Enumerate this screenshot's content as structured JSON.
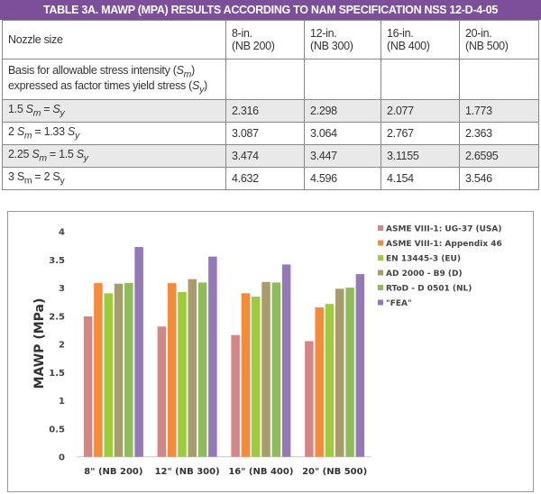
{
  "table": {
    "title": "TABLE 3A. MAWP (MPA) RESULTS ACCORDING TO NAM SPECIFICATION NSS 12-D-4-05",
    "header": {
      "label": "Nozzle size",
      "cols": [
        {
          "size": "8-in.",
          "nb": "(NB 200)"
        },
        {
          "size": "12-in.",
          "nb": "(NB 300)"
        },
        {
          "size": "16-in.",
          "nb": "(NB 400)"
        },
        {
          "size": "20-in.",
          "nb": "(NB 500)"
        }
      ]
    },
    "basis": {
      "a": "Basis for allowable stress intensity (",
      "s": "S",
      "m": "m",
      "b": ")",
      "c": "expressed as factor times yield stress (",
      "s2": "S",
      "y": "y",
      "d": ")"
    },
    "rows": [
      {
        "pre": "1.5 ",
        "s1": "S",
        "sub1": "m",
        "mid": " = ",
        "s2": "S",
        "sub2": "y",
        "values": [
          "2.316",
          "2.298",
          "2.077",
          "1.773"
        ]
      },
      {
        "pre": "2 ",
        "s1": "S",
        "sub1": "m",
        "mid": " = 1.33 ",
        "s2": "S",
        "sub2": "y",
        "values": [
          "3.087",
          "3.064",
          "2.767",
          "2.363"
        ]
      },
      {
        "pre": "2.25 ",
        "s1": "S",
        "sub1": "m",
        "mid": " = 1.5 ",
        "s2": "S",
        "sub2": "y",
        "values": [
          "3.474",
          "3.447",
          "3.1155",
          "2.6595"
        ]
      },
      {
        "pre": "3 ",
        "s1": "S",
        "sub1": "m",
        "mid": " = 2 ",
        "s2": "S",
        "sub2": "y",
        "values": [
          "4.632",
          "4.596",
          "4.154",
          "3.546"
        ]
      }
    ]
  },
  "chart_data": {
    "type": "bar",
    "ylabel": "MAWP (MPa)",
    "ylim": [
      0,
      4
    ],
    "yticks": [
      "0",
      "0.5",
      "1",
      "1.5",
      "2",
      "2.5",
      "3",
      "3.5",
      "4"
    ],
    "grid": false,
    "legend_position": "right",
    "categories": [
      "8\" (NB 200)",
      "12\" (NB 300)",
      "16\" (NB 400)",
      "20\" (NB 500)"
    ],
    "series": [
      {
        "name": "ASME VIII-1: UG-37 (USA)",
        "color": "#d48585",
        "values": [
          2.49,
          2.31,
          2.16,
          2.05
        ]
      },
      {
        "name": "ASME VIII-1: Appendix 46",
        "color": "#f58a3a",
        "values": [
          3.08,
          3.08,
          2.9,
          2.65
        ]
      },
      {
        "name": "EN 13445-3 (EU)",
        "color": "#9dcc3a",
        "values": [
          2.9,
          2.92,
          2.84,
          2.71
        ]
      },
      {
        "name": "AD 2000 - B9 (D)",
        "color": "#a89c6c",
        "values": [
          3.07,
          3.15,
          3.1,
          2.98
        ]
      },
      {
        "name": "RToD - D 0501 (NL)",
        "color": "#8fbb5a",
        "values": [
          3.08,
          3.09,
          3.09,
          3.0
        ]
      },
      {
        "name": "\"FEA\"",
        "color": "#9479b8",
        "values": [
          3.72,
          3.55,
          3.41,
          3.24
        ]
      }
    ]
  }
}
